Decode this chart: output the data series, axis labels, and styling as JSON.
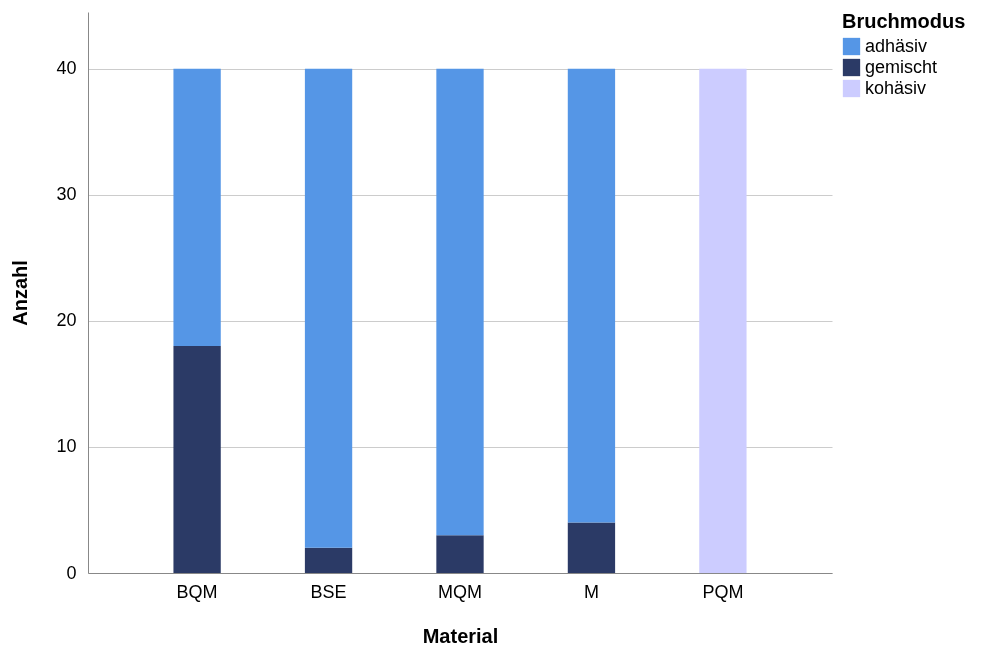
{
  "chart_data": {
    "type": "bar",
    "stacked": true,
    "xlabel": "Material",
    "ylabel": "Anzahl",
    "legend_title": "Bruchmodus",
    "legend": "top right",
    "categories": [
      "BQM",
      "BSE",
      "MQM",
      "M",
      "PQM"
    ],
    "series": [
      {
        "name": "gemischt",
        "color": "#2b3a66",
        "values": [
          18,
          2,
          3,
          4,
          null
        ]
      },
      {
        "name": "adhäsiv",
        "color": "#5596e6",
        "values": [
          22,
          38,
          37,
          36,
          null
        ]
      },
      {
        "name": "kohäsiv",
        "color": "#ccccff",
        "values": [
          null,
          null,
          null,
          null,
          40
        ]
      }
    ],
    "ylim": [
      0,
      44.5
    ],
    "yticks": [
      0,
      10,
      20,
      30,
      40
    ],
    "grid": "y"
  }
}
